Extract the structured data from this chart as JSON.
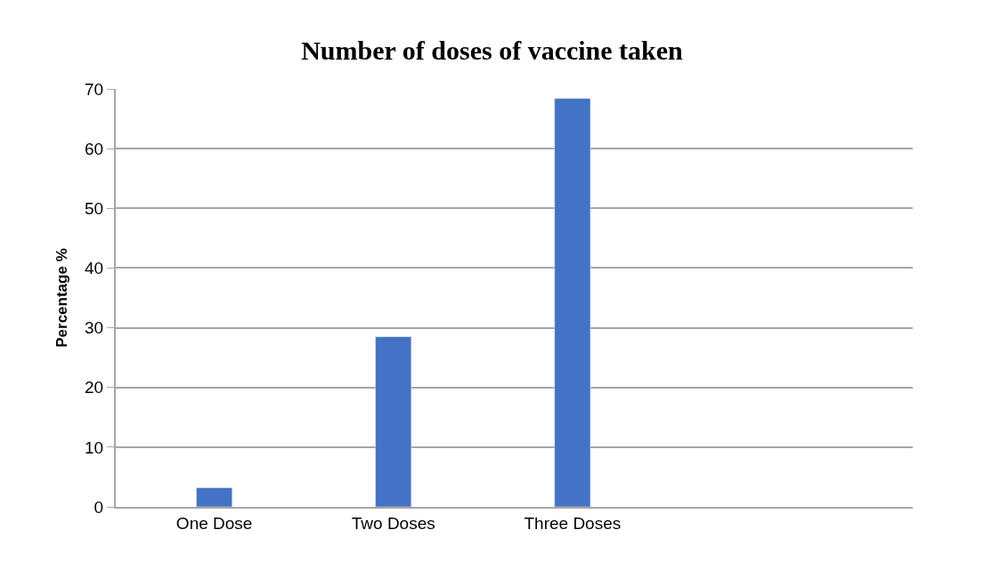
{
  "chart_data": {
    "type": "bar",
    "title": "Number of doses of vaccine taken",
    "ylabel": "Percentage %",
    "categories": [
      "One Dose",
      "Two Doses",
      "Three Doses",
      null
    ],
    "values": [
      3.2,
      28.5,
      68.4,
      null
    ],
    "color": "#4472c4",
    "ylim": [
      0,
      70
    ],
    "yticks": [
      0,
      10,
      20,
      30,
      40,
      50,
      60,
      70
    ],
    "grid": "y",
    "legend": false
  }
}
